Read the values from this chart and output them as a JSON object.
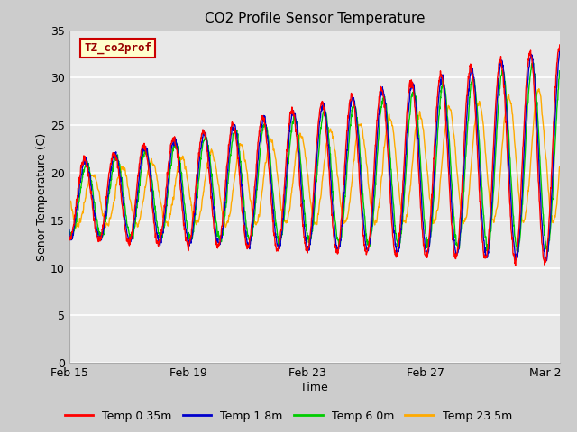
{
  "title": "CO2 Profile Sensor Temperature",
  "xlabel": "Time",
  "ylabel": "Senor Temperature (C)",
  "ylim": [
    0,
    35
  ],
  "yticks": [
    0,
    5,
    10,
    15,
    20,
    25,
    30,
    35
  ],
  "xtick_labels": [
    "Feb 15",
    "Feb 19",
    "Feb 23",
    "Feb 27",
    "Mar 2"
  ],
  "xtick_positions": [
    0,
    4,
    8,
    12,
    16
  ],
  "label_box_text": "TZ_co2prof",
  "label_box_bg": "#ffffcc",
  "label_box_edge": "#cc0000",
  "label_box_text_color": "#990000",
  "legend_entries": [
    "Temp 0.35m",
    "Temp 1.8m",
    "Temp 6.0m",
    "Temp 23.5m"
  ],
  "line_colors": [
    "#ff0000",
    "#0000cc",
    "#00cc00",
    "#ffaa00"
  ],
  "n_days": 16.5,
  "pts_per_day": 96
}
